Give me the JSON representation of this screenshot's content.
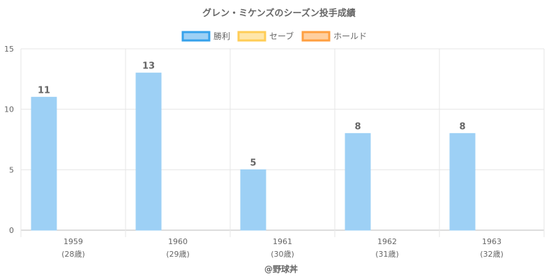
{
  "chart_data": {
    "type": "bar",
    "title": "グレン・ミケンズのシーズン投手成績",
    "categories": [
      "1959",
      "1960",
      "1961",
      "1962",
      "1963"
    ],
    "category_sublabels": [
      "(28歳)",
      "(29歳)",
      "(30歳)",
      "(31歳)",
      "(32歳)"
    ],
    "series": [
      {
        "name": "勝利",
        "values": [
          11,
          13,
          5,
          8,
          8
        ],
        "color": "#36a2eb",
        "fill": "#9dd0f5"
      },
      {
        "name": "セーブ",
        "values": [
          0,
          0,
          0,
          0,
          0
        ],
        "color": "#ffcd56",
        "fill": "#ffe6aa"
      },
      {
        "name": "ホールド",
        "values": [
          0,
          0,
          0,
          0,
          0
        ],
        "color": "#ff9f40",
        "fill": "#ffcf9f"
      }
    ],
    "data_labels": [
      "11",
      "13",
      "5",
      "8",
      "8"
    ],
    "ylim": [
      0,
      15
    ],
    "yticks": [
      "0",
      "5",
      "10",
      "15"
    ],
    "grid": true,
    "legend_position": "top"
  },
  "credit": "@野球丼"
}
